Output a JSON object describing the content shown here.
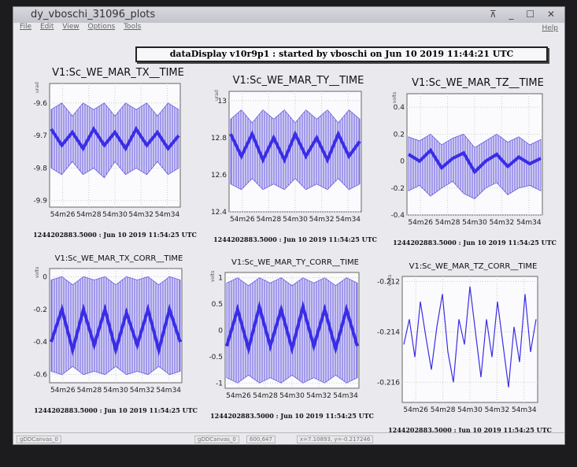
{
  "window": {
    "title": "dy_vboschi_31096_plots",
    "menu": [
      "File",
      "Edit",
      "View",
      "Options",
      "Tools"
    ],
    "help": "Help"
  },
  "banner": "dataDisplay v10r9p1 : started by vboschi on Jun 10 2019 11:44:21 UTC",
  "plots": [
    {
      "title": "V1:Sc_WE_MAR_TX__TIME",
      "unit": "urad",
      "ylim": [
        -9.92,
        -9.54
      ],
      "yticks": [
        -9.6,
        -9.7,
        -9.8,
        -9.9
      ],
      "xticks": [
        "54m26",
        "54m28",
        "54m30",
        "54m32",
        "54m34"
      ],
      "footer": "1244202883.5000 : Jun 10 2019 11:54:25 UTC",
      "values_high": [
        -9.62,
        -9.6,
        -9.64,
        -9.6,
        -9.62,
        -9.6,
        -9.64,
        -9.6,
        -9.62,
        -9.6,
        -9.64,
        -9.6,
        -9.62
      ],
      "values_low": [
        -9.8,
        -9.82,
        -9.78,
        -9.82,
        -9.8,
        -9.83,
        -9.78,
        -9.82,
        -9.8,
        -9.82,
        -9.78,
        -9.82,
        -9.8
      ],
      "values": [
        -9.68,
        -9.73,
        -9.69,
        -9.74,
        -9.68,
        -9.73,
        -9.69,
        -9.74,
        -9.68,
        -9.73,
        -9.69,
        -9.74,
        -9.7
      ]
    },
    {
      "title": "V1:Sc_WE_MAR_TY__TIME",
      "unit": "urad",
      "ylim": [
        12.4,
        13.05
      ],
      "yticks": [
        13,
        12.8,
        12.6,
        12.4
      ],
      "xticks": [
        "54m26",
        "54m28",
        "54m30",
        "54m32",
        "54m34"
      ],
      "footer": "1244202883.5000 : Jun 10 2019 11:54:25 UTC",
      "values_high": [
        12.9,
        12.95,
        12.88,
        12.95,
        12.9,
        12.95,
        12.88,
        12.95,
        12.9,
        12.95,
        12.88,
        12.95,
        12.9
      ],
      "values_low": [
        12.55,
        12.52,
        12.58,
        12.52,
        12.55,
        12.52,
        12.58,
        12.52,
        12.55,
        12.52,
        12.58,
        12.52,
        12.55
      ],
      "values": [
        12.82,
        12.7,
        12.82,
        12.68,
        12.8,
        12.68,
        12.82,
        12.7,
        12.8,
        12.68,
        12.82,
        12.7,
        12.78
      ]
    },
    {
      "title": "V1:Sc_WE_MAR_TZ__TIME",
      "unit": "volts",
      "ylim": [
        -0.4,
        0.5
      ],
      "yticks": [
        0.4,
        0.2,
        0,
        -0.2,
        -0.4
      ],
      "xticks": [
        "54m26",
        "54m28",
        "54m30",
        "54m32",
        "54m34"
      ],
      "footer": "1244202883.5000 : Jun 10 2019 11:54:25 UTC",
      "values_high": [
        0.18,
        0.15,
        0.2,
        0.12,
        0.17,
        0.2,
        0.1,
        0.15,
        0.2,
        0.14,
        0.18,
        0.12,
        0.16
      ],
      "values_low": [
        -0.22,
        -0.18,
        -0.26,
        -0.2,
        -0.15,
        -0.24,
        -0.28,
        -0.2,
        -0.16,
        -0.25,
        -0.2,
        -0.18,
        -0.22
      ],
      "values": [
        0.05,
        0,
        0.08,
        -0.05,
        0.02,
        0.06,
        -0.08,
        0,
        0.05,
        -0.04,
        0.03,
        -0.02,
        0.02
      ]
    },
    {
      "title": "V1:Sc_WE_MAR_TX_CORR__TIME",
      "unit": "volts",
      "ylim": [
        -0.65,
        0.05
      ],
      "yticks": [
        0,
        -0.2,
        -0.4,
        -0.6
      ],
      "xticks": [
        "54m26",
        "54m28",
        "54m30",
        "54m32",
        "54m34"
      ],
      "footer": "1244202883.5000 : Jun 10 2019 11:54:25 UTC",
      "values_high": [
        -0.02,
        0,
        -0.05,
        0,
        -0.02,
        0,
        -0.05,
        0,
        -0.02,
        0,
        -0.05,
        0,
        -0.02
      ],
      "values_low": [
        -0.58,
        -0.6,
        -0.55,
        -0.6,
        -0.58,
        -0.6,
        -0.55,
        -0.6,
        -0.58,
        -0.6,
        -0.55,
        -0.6,
        -0.58
      ],
      "values": [
        -0.4,
        -0.2,
        -0.45,
        -0.2,
        -0.42,
        -0.2,
        -0.45,
        -0.22,
        -0.42,
        -0.2,
        -0.45,
        -0.2,
        -0.4
      ]
    },
    {
      "title": "V1:Sc_WE_MAR_TY_CORR__TIME",
      "unit": "volts",
      "ylim": [
        -1.1,
        1.1
      ],
      "yticks": [
        1,
        0.5,
        0,
        -0.5,
        -1
      ],
      "xticks": [
        "54m26",
        "54m28",
        "54m30",
        "54m32",
        "54m34"
      ],
      "footer": "1244202883.5000 : Jun 10 2019 11:54:25 UTC",
      "values_high": [
        0.9,
        1,
        0.85,
        1,
        0.9,
        1,
        0.85,
        1,
        0.9,
        1,
        0.85,
        1,
        0.9
      ],
      "values_low": [
        -0.9,
        -1,
        -0.85,
        -1,
        -0.9,
        -1,
        -0.85,
        -1,
        -0.9,
        -1,
        -0.85,
        -1,
        -0.9
      ],
      "values": [
        -0.3,
        0.4,
        -0.35,
        0.45,
        -0.3,
        0.4,
        -0.35,
        0.45,
        -0.3,
        0.4,
        -0.35,
        0.4,
        -0.3
      ]
    },
    {
      "title": "V1:Sc_WE_MAR_TZ_CORR__TIME",
      "unit": "volts",
      "ylim": [
        -0.2168,
        -0.2118
      ],
      "yticks": [
        -0.212,
        -0.214,
        -0.216
      ],
      "xticks": [
        "54m26",
        "54m28",
        "54m30",
        "54m32",
        "54m34"
      ],
      "footer": "1244202883.5000 : Jun 10 2019 11:54:25 UTC",
      "values": [
        -0.2145,
        -0.2135,
        -0.215,
        -0.2128,
        -0.2142,
        -0.2155,
        -0.2138,
        -0.2125,
        -0.2148,
        -0.216,
        -0.2135,
        -0.2145,
        -0.2122,
        -0.214,
        -0.2158,
        -0.2135,
        -0.215,
        -0.2128,
        -0.2145,
        -0.2162,
        -0.2138,
        -0.2152,
        -0.2125,
        -0.2148,
        -0.2135
      ]
    }
  ],
  "status": [
    "gDDCanvas_0",
    "gDDCanvas_0",
    "600,647",
    "x=7.10893, y=-0.217246"
  ]
}
